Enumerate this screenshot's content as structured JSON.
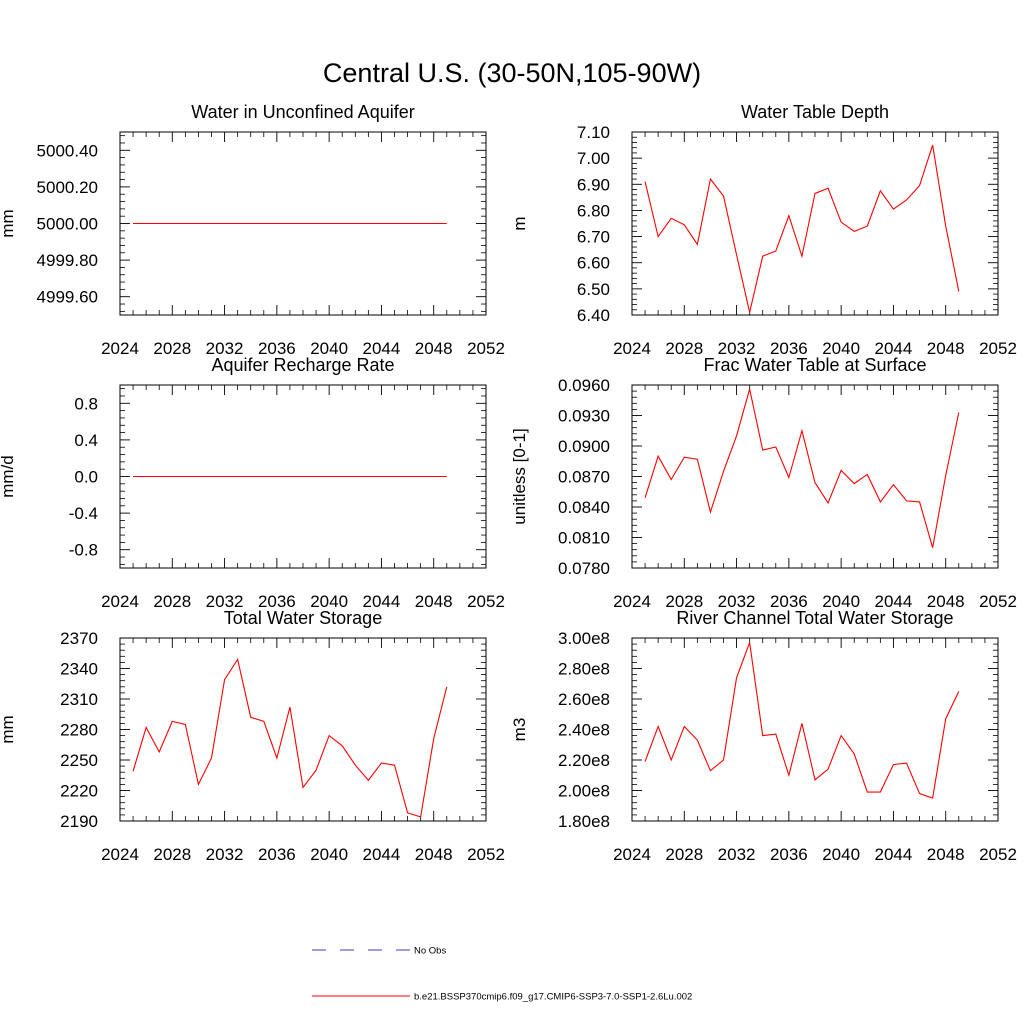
{
  "title": "Central U.S. (30-50N,105-90W)",
  "legend": {
    "obs_label": "No Obs",
    "model_label": "b.e21.BSSP370cmip6.f09_g17.CMIP6-SSP3-7.0-SSP1-2.6Lu.002",
    "obs_color": "#3b3bd0",
    "model_color": "#ff0000"
  },
  "chart_data": [
    {
      "type": "line",
      "title": "Water in Unconfined Aquifer",
      "ylabel": "mm",
      "xlim": [
        2024,
        2052
      ],
      "xticks": [
        2024,
        2028,
        2032,
        2036,
        2040,
        2044,
        2048,
        2052
      ],
      "xtick_labels": [
        "2024",
        "2028",
        "2032",
        "2036",
        "2040",
        "2044",
        "2048",
        "2052"
      ],
      "ylim": [
        4999.5,
        5000.5
      ],
      "yticks": [
        4999.6,
        4999.8,
        5000.0,
        5000.2,
        5000.4
      ],
      "ytick_labels": [
        "4999.60",
        "4999.80",
        "5000.00",
        "5000.20",
        "5000.40"
      ],
      "series": [
        {
          "x": [
            2025,
            2026,
            2027,
            2028,
            2029,
            2030,
            2031,
            2032,
            2033,
            2034,
            2035,
            2036,
            2037,
            2038,
            2039,
            2040,
            2041,
            2042,
            2043,
            2044,
            2045,
            2046,
            2047,
            2048,
            2049
          ],
          "y": [
            5000.0,
            5000.0,
            5000.0,
            5000.0,
            5000.0,
            5000.0,
            5000.0,
            5000.0,
            5000.0,
            5000.0,
            5000.0,
            5000.0,
            5000.0,
            5000.0,
            5000.0,
            5000.0,
            5000.0,
            5000.0,
            5000.0,
            5000.0,
            5000.0,
            5000.0,
            5000.0,
            5000.0,
            5000.0
          ]
        }
      ]
    },
    {
      "type": "line",
      "title": "Water Table Depth",
      "ylabel": "m",
      "xlim": [
        2024,
        2052
      ],
      "xticks": [
        2024,
        2028,
        2032,
        2036,
        2040,
        2044,
        2048,
        2052
      ],
      "xtick_labels": [
        "2024",
        "2028",
        "2032",
        "2036",
        "2040",
        "2044",
        "2048",
        "2052"
      ],
      "ylim": [
        6.4,
        7.1
      ],
      "yticks": [
        6.4,
        6.5,
        6.6,
        6.7,
        6.8,
        6.9,
        7.0,
        7.1
      ],
      "ytick_labels": [
        "6.40",
        "6.50",
        "6.60",
        "6.70",
        "6.80",
        "6.90",
        "7.00",
        "7.10"
      ],
      "series": [
        {
          "x": [
            2025,
            2026,
            2027,
            2028,
            2029,
            2030,
            2031,
            2032,
            2033,
            2034,
            2035,
            2036,
            2037,
            2038,
            2039,
            2040,
            2041,
            2042,
            2043,
            2044,
            2045,
            2046,
            2047,
            2048,
            2049
          ],
          "y": [
            6.91,
            6.7,
            6.77,
            6.745,
            6.67,
            6.92,
            6.855,
            6.63,
            6.41,
            6.625,
            6.645,
            6.78,
            6.625,
            6.865,
            6.885,
            6.755,
            6.72,
            6.74,
            6.875,
            6.805,
            6.84,
            6.895,
            7.05,
            6.74,
            6.49
          ]
        }
      ]
    },
    {
      "type": "line",
      "title": "Aquifer Recharge Rate",
      "ylabel": "mm/d",
      "xlim": [
        2024,
        2052
      ],
      "xticks": [
        2024,
        2028,
        2032,
        2036,
        2040,
        2044,
        2048,
        2052
      ],
      "xtick_labels": [
        "2024",
        "2028",
        "2032",
        "2036",
        "2040",
        "2044",
        "2048",
        "2052"
      ],
      "ylim": [
        -1.0,
        1.0
      ],
      "yticks": [
        -0.8,
        -0.4,
        0.0,
        0.4,
        0.8
      ],
      "ytick_labels": [
        "-0.8",
        "-0.4",
        "0.0",
        "0.4",
        "0.8"
      ],
      "series": [
        {
          "x": [
            2025,
            2026,
            2027,
            2028,
            2029,
            2030,
            2031,
            2032,
            2033,
            2034,
            2035,
            2036,
            2037,
            2038,
            2039,
            2040,
            2041,
            2042,
            2043,
            2044,
            2045,
            2046,
            2047,
            2048,
            2049
          ],
          "y": [
            0,
            0,
            0,
            0,
            0,
            0,
            0,
            0,
            0,
            0,
            0,
            0,
            0,
            0,
            0,
            0,
            0,
            0,
            0,
            0,
            0,
            0,
            0,
            0,
            0
          ]
        }
      ]
    },
    {
      "type": "line",
      "title": "Frac Water Table at Surface",
      "ylabel": "unitless [0-1]",
      "xlim": [
        2024,
        2052
      ],
      "xticks": [
        2024,
        2028,
        2032,
        2036,
        2040,
        2044,
        2048,
        2052
      ],
      "xtick_labels": [
        "2024",
        "2028",
        "2032",
        "2036",
        "2040",
        "2044",
        "2048",
        "2052"
      ],
      "ylim": [
        0.078,
        0.096
      ],
      "yticks": [
        0.078,
        0.081,
        0.084,
        0.087,
        0.09,
        0.093,
        0.096
      ],
      "ytick_labels": [
        "0.0780",
        "0.0810",
        "0.0840",
        "0.0870",
        "0.0900",
        "0.0930",
        "0.0960"
      ],
      "series": [
        {
          "x": [
            2025,
            2026,
            2027,
            2028,
            2029,
            2030,
            2031,
            2032,
            2033,
            2034,
            2035,
            2036,
            2037,
            2038,
            2039,
            2040,
            2041,
            2042,
            2043,
            2044,
            2045,
            2046,
            2047,
            2048,
            2049
          ],
          "y": [
            0.0849,
            0.089,
            0.0867,
            0.0889,
            0.0887,
            0.0835,
            0.0875,
            0.091,
            0.0956,
            0.0896,
            0.0899,
            0.0869,
            0.0915,
            0.0864,
            0.0844,
            0.0876,
            0.0863,
            0.0872,
            0.0845,
            0.0862,
            0.0846,
            0.0845,
            0.08,
            0.0871,
            0.0933
          ]
        }
      ]
    },
    {
      "type": "line",
      "title": "Total Water Storage",
      "ylabel": "mm",
      "xlim": [
        2024,
        2052
      ],
      "xticks": [
        2024,
        2028,
        2032,
        2036,
        2040,
        2044,
        2048,
        2052
      ],
      "xtick_labels": [
        "2024",
        "2028",
        "2032",
        "2036",
        "2040",
        "2044",
        "2048",
        "2052"
      ],
      "ylim": [
        2190,
        2370
      ],
      "yticks": [
        2190,
        2220,
        2250,
        2280,
        2310,
        2340,
        2370
      ],
      "ytick_labels": [
        "2190",
        "2220",
        "2250",
        "2280",
        "2310",
        "2340",
        "2370"
      ],
      "series": [
        {
          "x": [
            2025,
            2026,
            2027,
            2028,
            2029,
            2030,
            2031,
            2032,
            2033,
            2034,
            2035,
            2036,
            2037,
            2038,
            2039,
            2040,
            2041,
            2042,
            2043,
            2044,
            2045,
            2046,
            2047,
            2048,
            2049
          ],
          "y": [
            2239,
            2282,
            2258,
            2288,
            2285,
            2226,
            2252,
            2329,
            2349,
            2292,
            2288,
            2252,
            2302,
            2223,
            2240,
            2274,
            2264,
            2245,
            2230,
            2247,
            2245,
            2198,
            2194,
            2271,
            2322
          ]
        }
      ]
    },
    {
      "type": "line",
      "title": "River Channel Total Water Storage",
      "ylabel": "m3",
      "xlim": [
        2024,
        2052
      ],
      "xticks": [
        2024,
        2028,
        2032,
        2036,
        2040,
        2044,
        2048,
        2052
      ],
      "xtick_labels": [
        "2024",
        "2028",
        "2032",
        "2036",
        "2040",
        "2044",
        "2048",
        "2052"
      ],
      "ylim": [
        180000000,
        300000000
      ],
      "yticks": [
        180000000,
        200000000,
        220000000,
        240000000,
        260000000,
        280000000,
        300000000
      ],
      "ytick_labels": [
        "1.80e8",
        "2.00e8",
        "2.20e8",
        "2.40e8",
        "2.60e8",
        "2.80e8",
        "3.00e8"
      ],
      "series": [
        {
          "x": [
            2025,
            2026,
            2027,
            2028,
            2029,
            2030,
            2031,
            2032,
            2033,
            2034,
            2035,
            2036,
            2037,
            2038,
            2039,
            2040,
            2041,
            2042,
            2043,
            2044,
            2045,
            2046,
            2047,
            2048,
            2049
          ],
          "y": [
            219000000,
            242000000,
            220000000,
            242000000,
            233000000,
            213000000,
            220000000,
            274000000,
            297000000,
            236000000,
            237000000,
            210000000,
            244000000,
            207000000,
            214000000,
            236000000,
            224000000,
            199000000,
            199000000,
            217000000,
            218000000,
            198000000,
            195000000,
            247000000,
            265000000
          ]
        }
      ]
    }
  ]
}
